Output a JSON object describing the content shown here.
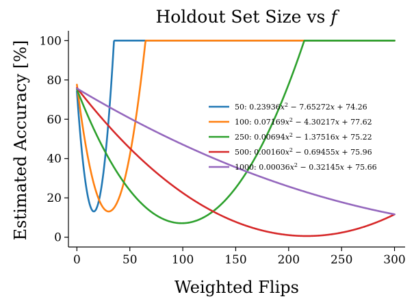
{
  "chart_data": {
    "type": "line",
    "title_prefix": "Holdout Set Size vs ",
    "title_var": "f",
    "xlabel": "Weighted Flips",
    "ylabel": "Estimated Accuracy [%]",
    "xlim": [
      -8,
      310
    ],
    "ylim": [
      -5,
      105
    ],
    "xticks": [
      0,
      50,
      100,
      150,
      200,
      250,
      300
    ],
    "yticks": [
      0,
      20,
      40,
      60,
      80,
      100
    ],
    "grid": false,
    "legend_position": "center-right",
    "series": [
      {
        "name": "50",
        "color": "#1f77b4",
        "a": 0.23936,
        "b": -7.65272,
        "c": 74.26,
        "label_html": "50: 0.23936<tspan font-style='italic'>x</tspan><tspan dy='-4' font-size='8'>2</tspan><tspan dy='4'> − 7.65272</tspan><tspan font-style='italic'>x</tspan> + 74.26"
      },
      {
        "name": "100",
        "color": "#ff7f0e",
        "a": 0.07169,
        "b": -4.30217,
        "c": 77.62,
        "label_html": "100: 0.07169<tspan font-style='italic'>x</tspan><tspan dy='-4' font-size='8'>2</tspan><tspan dy='4'> − 4.30217</tspan><tspan font-style='italic'>x</tspan> + 77.62"
      },
      {
        "name": "250",
        "color": "#2ca02c",
        "a": 0.00694,
        "b": -1.37516,
        "c": 75.22,
        "label_html": "250: 0.00694<tspan font-style='italic'>x</tspan><tspan dy='-4' font-size='8'>2</tspan><tspan dy='4'> − 1.37516</tspan><tspan font-style='italic'>x</tspan> + 75.22"
      },
      {
        "name": "500",
        "color": "#d62728",
        "a": 0.0016,
        "b": -0.69455,
        "c": 75.96,
        "label_html": "500: 0.00160<tspan font-style='italic'>x</tspan><tspan dy='-4' font-size='8'>2</tspan><tspan dy='4'> − 0.69455</tspan><tspan font-style='italic'>x</tspan> + 75.96"
      },
      {
        "name": "1000",
        "color": "#9467bd",
        "a": 0.00036,
        "b": -0.32145,
        "c": 75.66,
        "label_html": "1000: 0.00036<tspan font-style='italic'>x</tspan><tspan dy='-4' font-size='8'>2</tspan><tspan dy='4'> − 0.32145</tspan><tspan font-style='italic'>x</tspan> + 75.66"
      }
    ],
    "x_range": [
      0,
      300
    ],
    "y_cap": 100
  }
}
